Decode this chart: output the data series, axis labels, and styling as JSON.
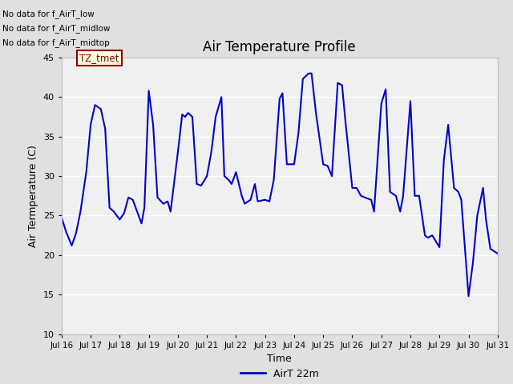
{
  "title": "Air Temperature Profile",
  "xlabel": "Time",
  "ylabel": "Air Termperature (C)",
  "xlim": [
    0,
    15
  ],
  "ylim": [
    10,
    45
  ],
  "yticks": [
    10,
    15,
    20,
    25,
    30,
    35,
    40,
    45
  ],
  "xtick_labels": [
    "Jul 16",
    "Jul 17",
    "Jul 18",
    "Jul 19",
    "Jul 20",
    "Jul 21",
    "Jul 22",
    "Jul 23",
    "Jul 24",
    "Jul 25",
    "Jul 26",
    "Jul 27",
    "Jul 28",
    "Jul 29",
    "Jul 30",
    "Jul 31"
  ],
  "line_color": "#0000cc",
  "line_width": 1.5,
  "legend_label": "AirT 22m",
  "no_data_texts": [
    "No data for f_AirT_low",
    "No data for f_AirT_midlow",
    "No data for f_AirT_midtop"
  ],
  "tz_tmet_text": "TZ_tmet",
  "bg_color_outer": "#e0e0e0",
  "bg_color_inner": "#f0f0f0",
  "grid_color": "#ffffff",
  "data_x": [
    0.0,
    0.15,
    0.35,
    0.5,
    0.65,
    0.85,
    1.0,
    1.15,
    1.35,
    1.5,
    1.65,
    1.8,
    2.0,
    2.15,
    2.3,
    2.45,
    2.6,
    2.75,
    2.85,
    3.0,
    3.15,
    3.3,
    3.5,
    3.65,
    3.75,
    4.0,
    4.15,
    4.25,
    4.35,
    4.5,
    4.65,
    4.8,
    5.0,
    5.15,
    5.3,
    5.5,
    5.6,
    5.75,
    5.85,
    6.0,
    6.2,
    6.3,
    6.5,
    6.65,
    6.75,
    7.0,
    7.15,
    7.3,
    7.5,
    7.6,
    7.75,
    8.0,
    8.15,
    8.3,
    8.5,
    8.6,
    8.75,
    9.0,
    9.15,
    9.3,
    9.5,
    9.65,
    9.75,
    10.0,
    10.15,
    10.3,
    10.5,
    10.65,
    10.75,
    11.0,
    11.15,
    11.3,
    11.5,
    11.65,
    11.75,
    12.0,
    12.15,
    12.3,
    12.5,
    12.6,
    12.75,
    13.0,
    13.15,
    13.3,
    13.5,
    13.65,
    13.75,
    14.0,
    14.15,
    14.3,
    14.5,
    14.6,
    14.75,
    15.0
  ],
  "data_y": [
    24.8,
    23.0,
    21.2,
    22.8,
    25.5,
    30.5,
    36.5,
    39.0,
    38.5,
    36.0,
    26.0,
    25.5,
    24.5,
    25.3,
    27.3,
    27.0,
    25.5,
    24.0,
    26.0,
    40.8,
    36.5,
    27.3,
    26.5,
    26.8,
    25.5,
    33.0,
    37.8,
    37.5,
    38.0,
    37.5,
    29.0,
    28.8,
    30.0,
    33.0,
    37.5,
    40.0,
    30.0,
    29.5,
    29.0,
    30.5,
    27.5,
    26.5,
    27.0,
    29.0,
    26.8,
    27.0,
    26.8,
    29.5,
    39.8,
    40.5,
    31.5,
    31.5,
    35.5,
    42.3,
    43.0,
    43.0,
    38.0,
    31.5,
    31.3,
    30.0,
    41.8,
    41.5,
    37.5,
    28.5,
    28.5,
    27.5,
    27.2,
    27.0,
    25.5,
    39.2,
    41.0,
    28.0,
    27.5,
    25.5,
    27.5,
    39.5,
    27.5,
    27.5,
    22.5,
    22.2,
    22.5,
    21.0,
    32.0,
    36.5,
    28.5,
    28.0,
    27.0,
    14.8,
    19.0,
    25.0,
    28.5,
    24.5,
    20.8,
    20.2
  ]
}
